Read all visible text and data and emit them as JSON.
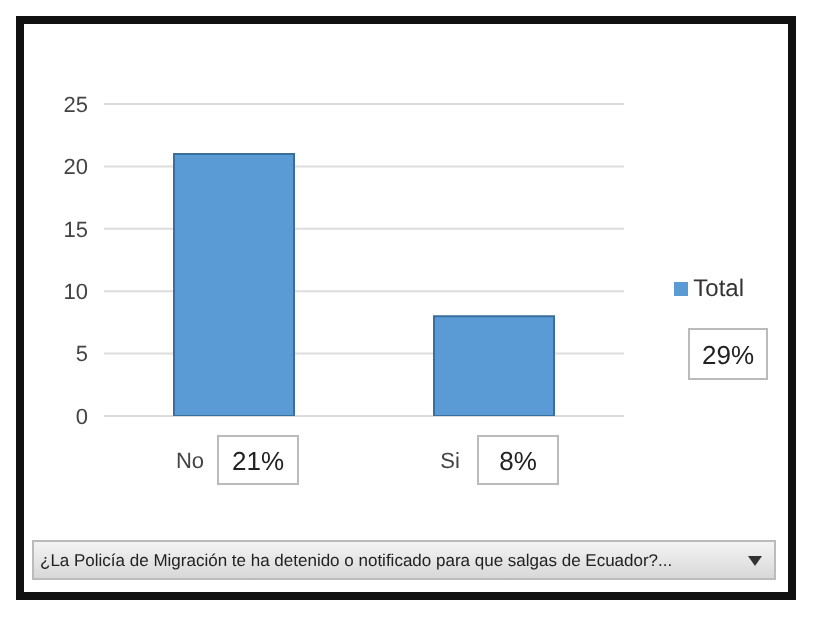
{
  "chart_data": {
    "type": "bar",
    "categories": [
      "No",
      "Si"
    ],
    "series": [
      {
        "name": "Total",
        "color": "#5b9bd5",
        "values": [
          21,
          8
        ],
        "value_labels": [
          "21%",
          "8%"
        ]
      }
    ],
    "ylim": [
      0,
      25
    ],
    "yticks": [
      0,
      5,
      10,
      15,
      20,
      25
    ],
    "grid": "y",
    "legend": "right",
    "xlabel": "¿La Policía de Migración te ha detenido o notificado para que salgas de Ecuador?...",
    "annotations": [
      "29%"
    ]
  }
}
